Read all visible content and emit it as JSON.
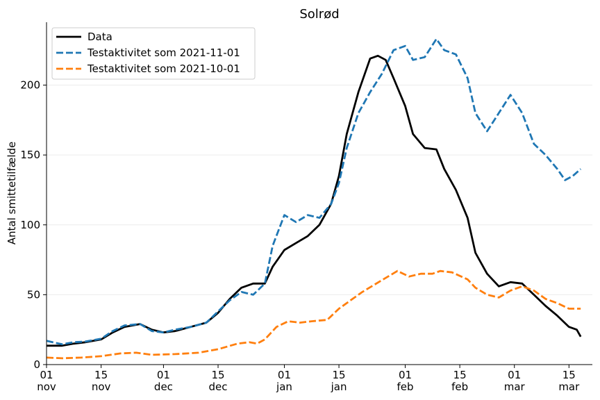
{
  "chart_data": {
    "type": "line",
    "title": "Solrød",
    "xlabel": "",
    "ylabel": "Antal smittetilfælde",
    "ylim": [
      0,
      245
    ],
    "yticks": [
      0,
      50,
      100,
      150,
      200
    ],
    "xlim": [
      "2021-11-01",
      "2022-03-21"
    ],
    "xticks": [
      {
        "date": "2021-11-01",
        "day": "01",
        "month": "nov"
      },
      {
        "date": "2021-11-15",
        "day": "15",
        "month": "nov"
      },
      {
        "date": "2021-12-01",
        "day": "01",
        "month": "dec"
      },
      {
        "date": "2021-12-15",
        "day": "15",
        "month": "dec"
      },
      {
        "date": "2022-01-01",
        "day": "01",
        "month": "jan"
      },
      {
        "date": "2022-01-15",
        "day": "15",
        "month": "jan"
      },
      {
        "date": "2022-02-01",
        "day": "01",
        "month": "feb"
      },
      {
        "date": "2022-02-15",
        "day": "15",
        "month": "feb"
      },
      {
        "date": "2022-03-01",
        "day": "01",
        "month": "mar"
      },
      {
        "date": "2022-03-15",
        "day": "15",
        "month": "mar"
      }
    ],
    "grid": "horizontal",
    "legend_position": "top-left",
    "series": [
      {
        "name": "Data",
        "color": "#000000",
        "style": "solid",
        "points": [
          [
            "2021-11-01",
            13.5
          ],
          [
            "2021-11-05",
            13.5
          ],
          [
            "2021-11-08",
            15
          ],
          [
            "2021-11-11",
            16
          ],
          [
            "2021-11-15",
            18
          ],
          [
            "2021-11-18",
            23
          ],
          [
            "2021-11-21",
            27
          ],
          [
            "2021-11-25",
            29
          ],
          [
            "2021-11-28",
            25
          ],
          [
            "2021-12-01",
            23
          ],
          [
            "2021-12-04",
            24
          ],
          [
            "2021-12-08",
            27
          ],
          [
            "2021-12-12",
            30
          ],
          [
            "2021-12-15",
            37
          ],
          [
            "2021-12-18",
            47
          ],
          [
            "2021-12-21",
            55
          ],
          [
            "2021-12-24",
            58
          ],
          [
            "2021-12-27",
            58
          ],
          [
            "2021-12-29",
            70
          ],
          [
            "2022-01-01",
            82
          ],
          [
            "2022-01-04",
            87
          ],
          [
            "2022-01-07",
            92
          ],
          [
            "2022-01-10",
            100
          ],
          [
            "2022-01-13",
            115
          ],
          [
            "2022-01-15",
            135
          ],
          [
            "2022-01-17",
            165
          ],
          [
            "2022-01-20",
            195
          ],
          [
            "2022-01-23",
            219
          ],
          [
            "2022-01-25",
            221
          ],
          [
            "2022-01-27",
            218
          ],
          [
            "2022-01-29",
            205
          ],
          [
            "2022-02-01",
            185
          ],
          [
            "2022-02-03",
            165
          ],
          [
            "2022-02-06",
            155
          ],
          [
            "2022-02-09",
            154
          ],
          [
            "2022-02-11",
            140
          ],
          [
            "2022-02-14",
            125
          ],
          [
            "2022-02-17",
            105
          ],
          [
            "2022-02-19",
            80
          ],
          [
            "2022-02-22",
            65
          ],
          [
            "2022-02-25",
            56
          ],
          [
            "2022-02-28",
            59
          ],
          [
            "2022-03-03",
            58
          ],
          [
            "2022-03-06",
            50
          ],
          [
            "2022-03-09",
            42
          ],
          [
            "2022-03-12",
            35
          ],
          [
            "2022-03-15",
            27
          ],
          [
            "2022-03-17",
            25
          ],
          [
            "2022-03-18",
            20
          ]
        ]
      },
      {
        "name": "Testaktivitet som 2021-11-01",
        "color": "#1f77b4",
        "style": "dashed",
        "points": [
          [
            "2021-11-01",
            17
          ],
          [
            "2021-11-05",
            14.5
          ],
          [
            "2021-11-08",
            16
          ],
          [
            "2021-11-11",
            16.5
          ],
          [
            "2021-11-15",
            18.5
          ],
          [
            "2021-11-18",
            24
          ],
          [
            "2021-11-21",
            28
          ],
          [
            "2021-11-25",
            29
          ],
          [
            "2021-11-28",
            24
          ],
          [
            "2021-12-01",
            23
          ],
          [
            "2021-12-04",
            25
          ],
          [
            "2021-12-08",
            27
          ],
          [
            "2021-12-12",
            30
          ],
          [
            "2021-12-15",
            38
          ],
          [
            "2021-12-18",
            46
          ],
          [
            "2021-12-21",
            52
          ],
          [
            "2021-12-24",
            50
          ],
          [
            "2021-12-27",
            58
          ],
          [
            "2021-12-29",
            85
          ],
          [
            "2022-01-01",
            107
          ],
          [
            "2022-01-04",
            102
          ],
          [
            "2022-01-07",
            107
          ],
          [
            "2022-01-10",
            105
          ],
          [
            "2022-01-13",
            115
          ],
          [
            "2022-01-15",
            130
          ],
          [
            "2022-01-17",
            155
          ],
          [
            "2022-01-20",
            180
          ],
          [
            "2022-01-23",
            195
          ],
          [
            "2022-01-26",
            208
          ],
          [
            "2022-01-29",
            225
          ],
          [
            "2022-02-01",
            228
          ],
          [
            "2022-02-03",
            218
          ],
          [
            "2022-02-06",
            220
          ],
          [
            "2022-02-09",
            233
          ],
          [
            "2022-02-11",
            225
          ],
          [
            "2022-02-14",
            222
          ],
          [
            "2022-02-17",
            205
          ],
          [
            "2022-02-19",
            180
          ],
          [
            "2022-02-22",
            167
          ],
          [
            "2022-02-25",
            180
          ],
          [
            "2022-02-28",
            193
          ],
          [
            "2022-03-03",
            180
          ],
          [
            "2022-03-06",
            158
          ],
          [
            "2022-03-09",
            150
          ],
          [
            "2022-03-12",
            140
          ],
          [
            "2022-03-14",
            132
          ],
          [
            "2022-03-16",
            135
          ],
          [
            "2022-03-18",
            140
          ]
        ]
      },
      {
        "name": "Testaktivitet som 2021-10-01",
        "color": "#ff7f0e",
        "style": "dashed",
        "points": [
          [
            "2021-11-01",
            5
          ],
          [
            "2021-11-05",
            4.5
          ],
          [
            "2021-11-10",
            5
          ],
          [
            "2021-11-15",
            6
          ],
          [
            "2021-11-20",
            8
          ],
          [
            "2021-11-24",
            8.5
          ],
          [
            "2021-11-28",
            7
          ],
          [
            "2021-12-04",
            7.5
          ],
          [
            "2021-12-10",
            8.5
          ],
          [
            "2021-12-15",
            11
          ],
          [
            "2021-12-20",
            15
          ],
          [
            "2021-12-23",
            16
          ],
          [
            "2021-12-25",
            15
          ],
          [
            "2021-12-27",
            18
          ],
          [
            "2021-12-30",
            27
          ],
          [
            "2022-01-02",
            31
          ],
          [
            "2022-01-05",
            30
          ],
          [
            "2022-01-08",
            31
          ],
          [
            "2022-01-12",
            32
          ],
          [
            "2022-01-15",
            40
          ],
          [
            "2022-01-18",
            46
          ],
          [
            "2022-01-21",
            52
          ],
          [
            "2022-01-24",
            57
          ],
          [
            "2022-01-27",
            62
          ],
          [
            "2022-01-30",
            67
          ],
          [
            "2022-02-02",
            63
          ],
          [
            "2022-02-05",
            65
          ],
          [
            "2022-02-08",
            65
          ],
          [
            "2022-02-10",
            67
          ],
          [
            "2022-02-13",
            66
          ],
          [
            "2022-02-17",
            61
          ],
          [
            "2022-02-19",
            55
          ],
          [
            "2022-02-22",
            50
          ],
          [
            "2022-02-25",
            48
          ],
          [
            "2022-02-28",
            53
          ],
          [
            "2022-03-03",
            56
          ],
          [
            "2022-03-06",
            53
          ],
          [
            "2022-03-09",
            47
          ],
          [
            "2022-03-12",
            44
          ],
          [
            "2022-03-15",
            40
          ],
          [
            "2022-03-18",
            40
          ]
        ]
      }
    ]
  }
}
